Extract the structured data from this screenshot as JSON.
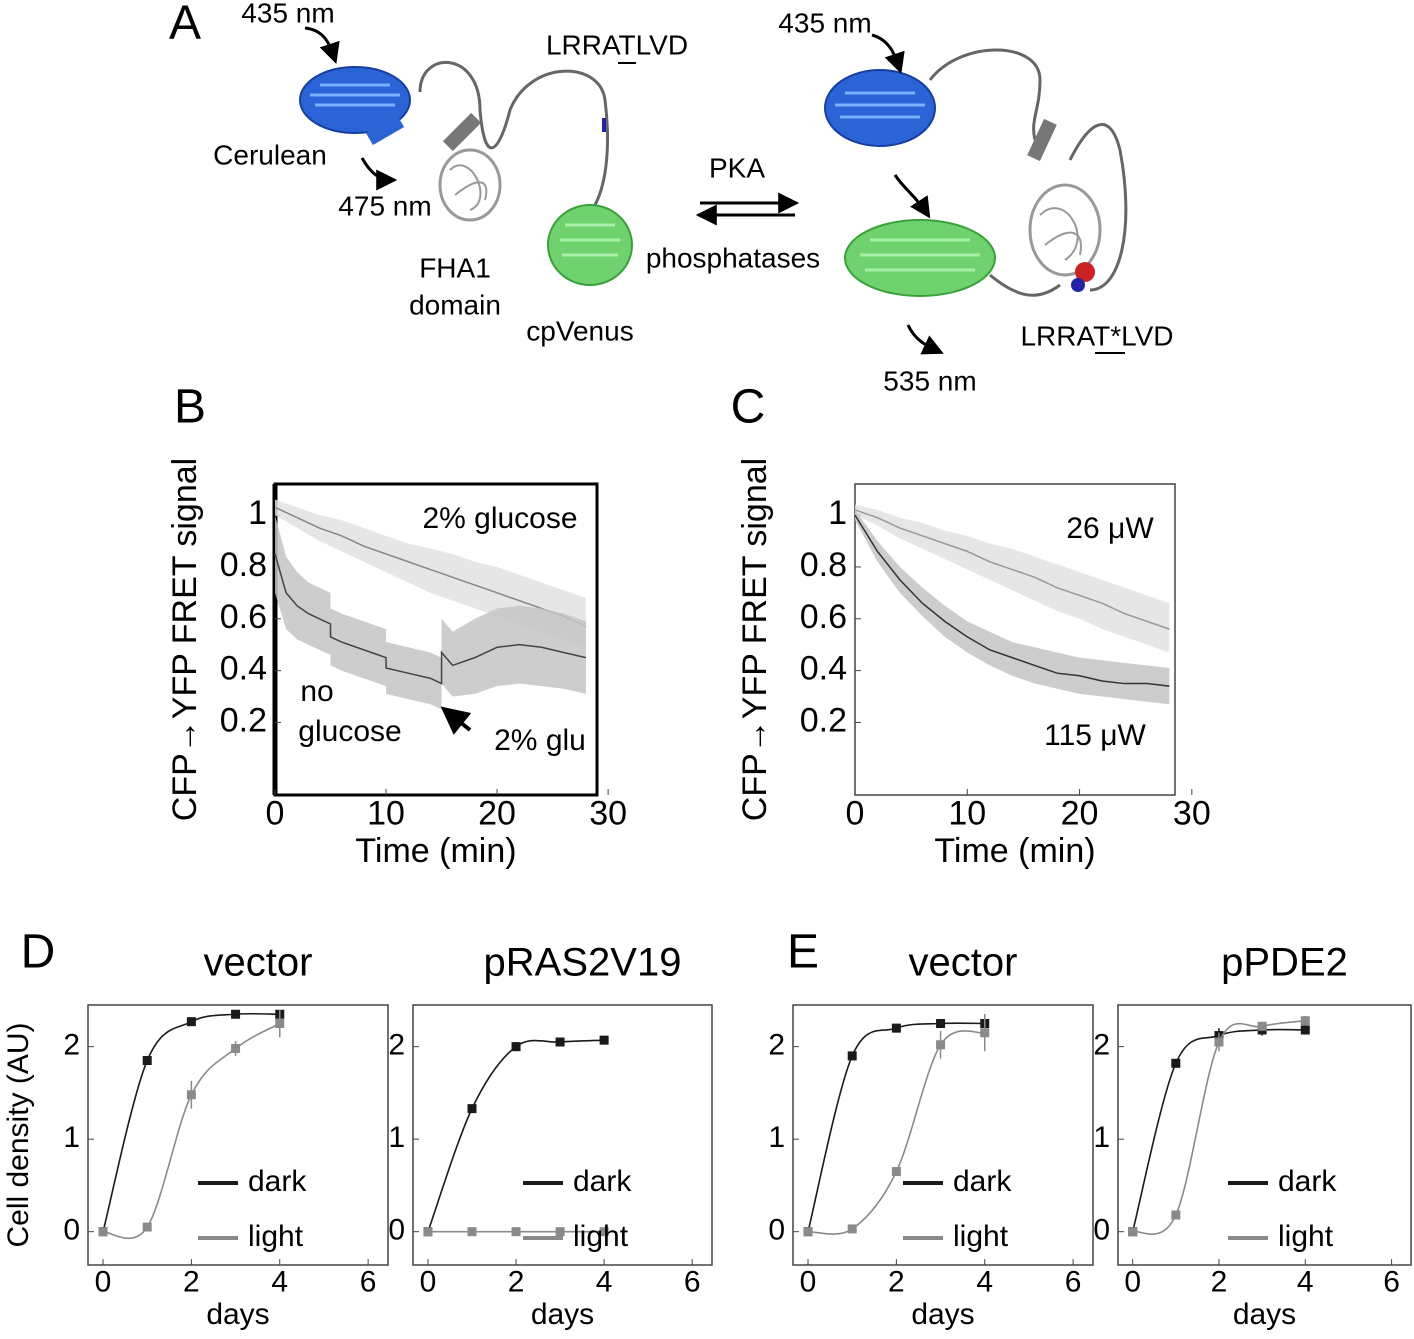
{
  "panel_a": {
    "letter": "A",
    "left": {
      "excitation": "435 nm",
      "donor": "Cerulean",
      "emission": "475 nm",
      "motif": "LRRATLVD",
      "domain_line1": "FHA1",
      "domain_line2": "domain",
      "acceptor": "cpVenus"
    },
    "forward": "PKA",
    "reverse": "phosphatases",
    "right": {
      "excitation": "435 nm",
      "emission": "535 nm",
      "motif": "LRRAT*LVD"
    }
  },
  "chart_data": [
    {
      "type": "line",
      "letter": "B",
      "ylabel": "CFP→YFP FRET signal",
      "xlabel": "Time (min)",
      "xlim": [
        0,
        29
      ],
      "xticks": [
        0,
        10,
        20,
        30
      ],
      "ylim": [
        -0.08,
        1.12
      ],
      "yticks": [
        0.2,
        0.4,
        0.6,
        0.8,
        1
      ],
      "annotations": [
        "2% glucose",
        "no",
        "glucose",
        "2% glu"
      ],
      "series": [
        {
          "color": "#888",
          "band_color": "#e2e2e2",
          "x": [
            0,
            2,
            4,
            6,
            8,
            10,
            12,
            14,
            16,
            18,
            20,
            22,
            24,
            26,
            28
          ],
          "values": [
            1.03,
            0.99,
            0.95,
            0.92,
            0.88,
            0.85,
            0.82,
            0.79,
            0.76,
            0.73,
            0.7,
            0.67,
            0.64,
            0.61,
            0.57
          ],
          "lower": [
            1.0,
            0.95,
            0.9,
            0.86,
            0.82,
            0.78,
            0.74,
            0.7,
            0.67,
            0.64,
            0.61,
            0.58,
            0.55,
            0.52,
            0.49
          ],
          "upper": [
            1.06,
            1.03,
            1.0,
            0.98,
            0.95,
            0.92,
            0.89,
            0.87,
            0.85,
            0.82,
            0.8,
            0.77,
            0.74,
            0.71,
            0.68
          ]
        },
        {
          "color": "#444",
          "band_color": "#c4c4c4",
          "x": [
            0,
            1,
            2,
            3,
            4,
            5,
            5,
            6,
            8,
            10,
            10,
            12,
            14,
            15,
            15,
            16,
            18,
            20,
            22,
            24,
            26,
            28
          ],
          "values": [
            0.85,
            0.7,
            0.65,
            0.62,
            0.6,
            0.58,
            0.53,
            0.51,
            0.48,
            0.45,
            0.41,
            0.39,
            0.37,
            0.35,
            0.47,
            0.42,
            0.45,
            0.49,
            0.5,
            0.49,
            0.47,
            0.45
          ],
          "lower": [
            0.7,
            0.56,
            0.52,
            0.5,
            0.48,
            0.46,
            0.42,
            0.4,
            0.37,
            0.34,
            0.31,
            0.29,
            0.27,
            0.25,
            0.35,
            0.3,
            0.31,
            0.34,
            0.35,
            0.34,
            0.33,
            0.31
          ],
          "upper": [
            1.0,
            0.84,
            0.78,
            0.74,
            0.72,
            0.7,
            0.64,
            0.62,
            0.59,
            0.56,
            0.51,
            0.49,
            0.47,
            0.45,
            0.6,
            0.55,
            0.6,
            0.64,
            0.65,
            0.64,
            0.62,
            0.59
          ]
        }
      ]
    },
    {
      "type": "line",
      "letter": "C",
      "ylabel": "CFP→YFP FRET signal",
      "xlabel": "Time (min)",
      "xlim": [
        0,
        28.5
      ],
      "xticks": [
        0,
        10,
        20,
        30
      ],
      "ylim": [
        -0.08,
        1.12
      ],
      "yticks": [
        0.2,
        0.4,
        0.6,
        0.8,
        1
      ],
      "annotations": [
        "26 μW",
        "115 μW"
      ],
      "series": [
        {
          "color": "#999",
          "band_color": "#e2e2e2",
          "x": [
            0,
            2,
            4,
            6,
            8,
            10,
            12,
            14,
            16,
            18,
            20,
            22,
            24,
            26,
            28
          ],
          "values": [
            1.02,
            0.99,
            0.95,
            0.92,
            0.89,
            0.86,
            0.82,
            0.79,
            0.76,
            0.72,
            0.69,
            0.66,
            0.62,
            0.59,
            0.56
          ],
          "lower": [
            1.0,
            0.96,
            0.91,
            0.87,
            0.83,
            0.79,
            0.75,
            0.71,
            0.67,
            0.63,
            0.6,
            0.56,
            0.53,
            0.5,
            0.47
          ],
          "upper": [
            1.04,
            1.02,
            0.99,
            0.97,
            0.94,
            0.92,
            0.89,
            0.87,
            0.84,
            0.81,
            0.78,
            0.75,
            0.72,
            0.69,
            0.66
          ]
        },
        {
          "color": "#333",
          "band_color": "#c4c4c4",
          "x": [
            0,
            2,
            4,
            6,
            8,
            10,
            12,
            14,
            16,
            18,
            20,
            22,
            24,
            26,
            28
          ],
          "values": [
            1.0,
            0.86,
            0.75,
            0.66,
            0.59,
            0.53,
            0.48,
            0.45,
            0.42,
            0.39,
            0.38,
            0.36,
            0.35,
            0.35,
            0.34
          ],
          "lower": [
            0.98,
            0.82,
            0.7,
            0.61,
            0.53,
            0.47,
            0.42,
            0.38,
            0.35,
            0.33,
            0.31,
            0.3,
            0.29,
            0.28,
            0.27
          ],
          "upper": [
            1.02,
            0.9,
            0.8,
            0.72,
            0.65,
            0.59,
            0.55,
            0.51,
            0.49,
            0.47,
            0.45,
            0.44,
            0.43,
            0.42,
            0.41
          ]
        }
      ]
    },
    {
      "type": "line",
      "letter": "D",
      "title": "vector",
      "ylabel": "Cell density (AU)",
      "xlabel": "days",
      "xlim": [
        -0.34,
        6.45
      ],
      "xticks": [
        0,
        2,
        4,
        6
      ],
      "ylim": [
        -0.36,
        2.45
      ],
      "yticks": [
        0,
        1,
        2
      ],
      "x": [
        0,
        1,
        2,
        3,
        4
      ],
      "series": [
        {
          "name": "dark",
          "color": "#1a1a1a",
          "values": [
            0,
            1.85,
            2.27,
            2.35,
            2.35
          ],
          "errors": [
            0,
            0,
            0.03,
            0.03,
            0.03
          ]
        },
        {
          "name": "light",
          "color": "#8a8a8a",
          "values": [
            0,
            0.05,
            1.48,
            1.98,
            2.25
          ],
          "errors": [
            0,
            0,
            0.15,
            0.08,
            0.15
          ]
        }
      ]
    },
    {
      "type": "line",
      "title": "pRAS2V19",
      "xlabel": "days",
      "xlim": [
        -0.34,
        6.45
      ],
      "xticks": [
        0,
        2,
        4,
        6
      ],
      "ylim": [
        -0.36,
        2.45
      ],
      "yticks": [
        0,
        1,
        2
      ],
      "x": [
        0,
        1,
        2,
        3,
        4
      ],
      "series": [
        {
          "name": "dark",
          "color": "#1a1a1a",
          "values": [
            0,
            1.33,
            2.0,
            2.05,
            2.07
          ],
          "errors": [
            0,
            0,
            0.05,
            0.03,
            0.03
          ]
        },
        {
          "name": "light",
          "color": "#8a8a8a",
          "values": [
            0,
            0,
            0,
            0,
            0
          ],
          "errors": [
            0,
            0,
            0,
            0,
            0
          ]
        }
      ]
    },
    {
      "type": "line",
      "letter": "E",
      "title": "vector",
      "xlabel": "days",
      "xlim": [
        -0.34,
        6.45
      ],
      "xticks": [
        0,
        2,
        4,
        6
      ],
      "ylim": [
        -0.36,
        2.45
      ],
      "yticks": [
        0,
        1,
        2
      ],
      "x": [
        0,
        1,
        2,
        3,
        4
      ],
      "series": [
        {
          "name": "dark",
          "color": "#1a1a1a",
          "values": [
            0,
            1.9,
            2.2,
            2.25,
            2.25
          ],
          "errors": [
            0,
            0,
            0.04,
            0.04,
            0.1
          ]
        },
        {
          "name": "light",
          "color": "#8a8a8a",
          "values": [
            0,
            0.03,
            0.65,
            2.02,
            2.15
          ],
          "errors": [
            0,
            0,
            0,
            0.15,
            0.2
          ]
        }
      ]
    },
    {
      "type": "line",
      "title": "pPDE2",
      "xlabel": "days",
      "xlim": [
        -0.34,
        6.45
      ],
      "xticks": [
        0,
        2,
        4,
        6
      ],
      "ylim": [
        -0.36,
        2.45
      ],
      "yticks": [
        0,
        1,
        2
      ],
      "x": [
        0,
        1,
        2,
        3,
        4
      ],
      "series": [
        {
          "name": "dark",
          "color": "#1a1a1a",
          "values": [
            0,
            1.82,
            2.12,
            2.18,
            2.18
          ],
          "errors": [
            0,
            0,
            0.08,
            0.06,
            0.05
          ]
        },
        {
          "name": "light",
          "color": "#8a8a8a",
          "values": [
            0,
            0.18,
            2.05,
            2.22,
            2.28
          ],
          "errors": [
            0,
            0,
            0.1,
            0.05,
            0.05
          ]
        }
      ]
    }
  ]
}
